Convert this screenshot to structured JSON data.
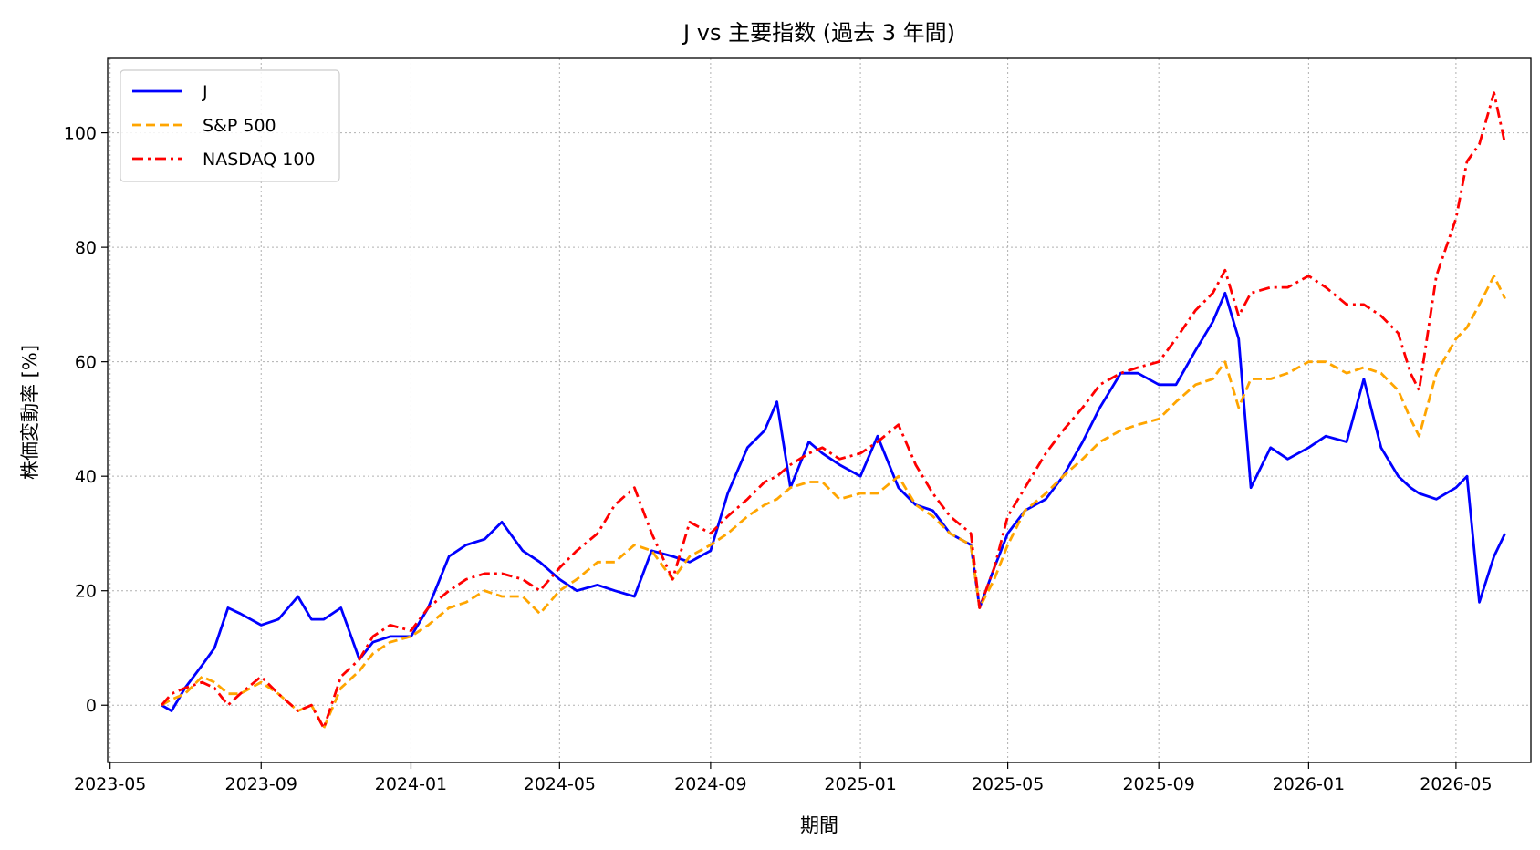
{
  "chart_data": {
    "type": "line",
    "title": "J vs 主要指数 (過去 3 年間)",
    "xlabel": "期間",
    "ylabel": "株価変動率 [%]",
    "xlim": [
      "2023-04-29",
      "2026-07-01"
    ],
    "ylim": [
      -10,
      113
    ],
    "x_ticks": [
      "2023-05",
      "2023-09",
      "2024-01",
      "2024-05",
      "2024-09",
      "2025-01",
      "2025-05",
      "2025-09",
      "2026-01",
      "2026-05"
    ],
    "y_ticks": [
      0,
      20,
      40,
      60,
      80,
      100
    ],
    "grid": true,
    "legend_position": "top-left",
    "x": [
      "2023-06-12",
      "2023-06-20",
      "2023-07-01",
      "2023-07-15",
      "2023-07-25",
      "2023-08-05",
      "2023-08-15",
      "2023-09-01",
      "2023-09-15",
      "2023-10-01",
      "2023-10-12",
      "2023-10-22",
      "2023-11-05",
      "2023-11-20",
      "2023-12-01",
      "2023-12-15",
      "2024-01-01",
      "2024-01-15",
      "2024-02-01",
      "2024-02-15",
      "2024-03-01",
      "2024-03-15",
      "2024-04-01",
      "2024-04-15",
      "2024-05-01",
      "2024-05-15",
      "2024-06-01",
      "2024-06-15",
      "2024-07-01",
      "2024-07-15",
      "2024-08-01",
      "2024-08-15",
      "2024-09-01",
      "2024-09-15",
      "2024-10-01",
      "2024-10-15",
      "2024-10-25",
      "2024-11-05",
      "2024-11-20",
      "2024-12-01",
      "2024-12-15",
      "2025-01-01",
      "2025-01-15",
      "2025-02-01",
      "2025-02-15",
      "2025-03-01",
      "2025-03-15",
      "2025-04-01",
      "2025-04-08",
      "2025-04-20",
      "2025-05-01",
      "2025-05-15",
      "2025-06-01",
      "2025-06-15",
      "2025-07-01",
      "2025-07-15",
      "2025-08-01",
      "2025-08-15",
      "2025-09-01",
      "2025-09-15",
      "2025-10-01",
      "2025-10-15",
      "2025-10-25",
      "2025-11-05",
      "2025-11-15",
      "2025-12-01",
      "2025-12-15",
      "2026-01-01",
      "2026-01-15",
      "2026-02-01",
      "2026-02-15",
      "2026-03-01",
      "2026-03-15",
      "2026-03-25",
      "2026-04-01",
      "2026-04-15",
      "2026-05-01",
      "2026-05-10",
      "2026-05-20",
      "2026-06-01",
      "2026-06-10"
    ],
    "series": [
      {
        "name": "J",
        "color": "#0000ff",
        "style": "solid",
        "values": [
          0,
          -1,
          3,
          7,
          10,
          17,
          16,
          14,
          15,
          19,
          15,
          15,
          17,
          8,
          11,
          12,
          12,
          17,
          26,
          28,
          29,
          32,
          27,
          25,
          22,
          20,
          21,
          20,
          19,
          27,
          26,
          25,
          27,
          37,
          45,
          48,
          53,
          38,
          46,
          44,
          42,
          40,
          47,
          38,
          35,
          34,
          30,
          28,
          17,
          24,
          30,
          34,
          36,
          40,
          46,
          52,
          58,
          58,
          56,
          56,
          62,
          67,
          72,
          64,
          38,
          45,
          43,
          45,
          47,
          46,
          57,
          45,
          40,
          38,
          37,
          36,
          38,
          40,
          18,
          26,
          30
        ]
      },
      {
        "name": "S&P 500",
        "color": "#ffa500",
        "style": "dashed",
        "values": [
          0,
          1,
          2,
          5,
          4,
          2,
          2,
          4,
          2,
          -1,
          0,
          -4,
          3,
          6,
          9,
          11,
          12,
          14,
          17,
          18,
          20,
          19,
          19,
          16,
          20,
          22,
          25,
          25,
          28,
          27,
          22,
          26,
          28,
          30,
          33,
          35,
          36,
          38,
          39,
          39,
          36,
          37,
          37,
          40,
          35,
          33,
          30,
          28,
          17,
          22,
          28,
          34,
          37,
          40,
          43,
          46,
          48,
          49,
          50,
          53,
          56,
          57,
          60,
          52,
          57,
          57,
          58,
          60,
          60,
          58,
          59,
          58,
          55,
          50,
          47,
          58,
          64,
          66,
          70,
          75,
          71
        ]
      },
      {
        "name": "NASDAQ 100",
        "color": "#ff0000",
        "style": "dashdot",
        "values": [
          0,
          2,
          3,
          4,
          3,
          0,
          2,
          5,
          2,
          -1,
          0,
          -4,
          5,
          8,
          12,
          14,
          13,
          17,
          20,
          22,
          23,
          23,
          22,
          20,
          24,
          27,
          30,
          35,
          38,
          30,
          22,
          32,
          30,
          33,
          36,
          39,
          40,
          42,
          44,
          45,
          43,
          44,
          46,
          49,
          42,
          37,
          33,
          30,
          17,
          24,
          33,
          38,
          44,
          48,
          52,
          56,
          58,
          59,
          60,
          64,
          69,
          72,
          76,
          68,
          72,
          73,
          73,
          75,
          73,
          70,
          70,
          68,
          65,
          58,
          55,
          75,
          85,
          95,
          98,
          107,
          98
        ]
      }
    ]
  }
}
